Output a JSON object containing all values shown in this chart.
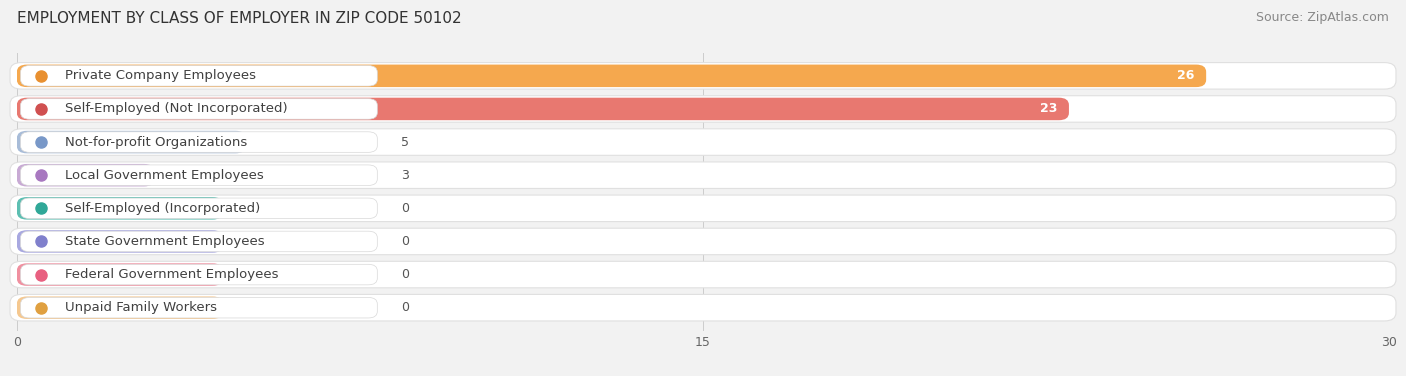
{
  "title": "EMPLOYMENT BY CLASS OF EMPLOYER IN ZIP CODE 50102",
  "source": "Source: ZipAtlas.com",
  "categories": [
    "Private Company Employees",
    "Self-Employed (Not Incorporated)",
    "Not-for-profit Organizations",
    "Local Government Employees",
    "Self-Employed (Incorporated)",
    "State Government Employees",
    "Federal Government Employees",
    "Unpaid Family Workers"
  ],
  "values": [
    26,
    23,
    5,
    3,
    0,
    0,
    0,
    0
  ],
  "bar_colors": [
    "#f5a84e",
    "#e87870",
    "#a8bcd8",
    "#c8aad4",
    "#5dbfb2",
    "#a8a8e0",
    "#f090a0",
    "#f5c890"
  ],
  "dot_colors": [
    "#e89030",
    "#d05050",
    "#7898c8",
    "#a878c0",
    "#30a898",
    "#8080cc",
    "#e86080",
    "#e0a040"
  ],
  "xlim": [
    0,
    30
  ],
  "xticks": [
    0,
    15,
    30
  ],
  "background_color": "#f2f2f2",
  "row_bg_color": "#f8f8f8",
  "title_fontsize": 11,
  "source_fontsize": 9,
  "label_fontsize": 9.5,
  "value_fontsize": 9,
  "min_bar_display": 4.5
}
